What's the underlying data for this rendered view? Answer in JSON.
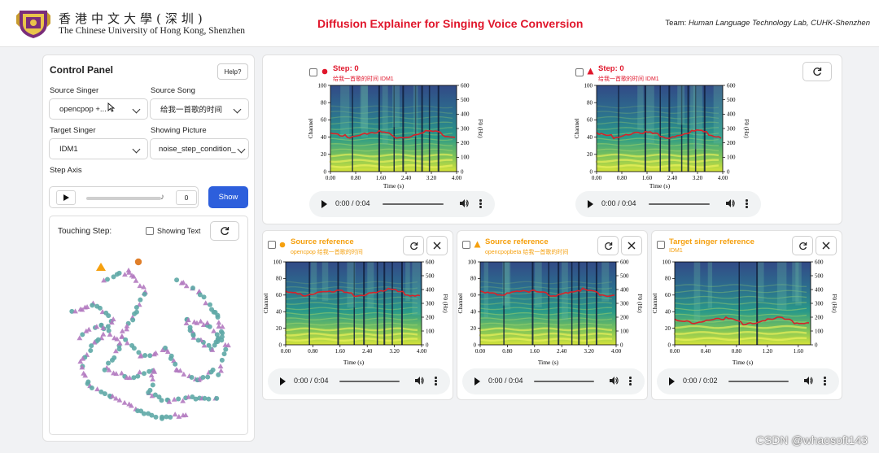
{
  "header": {
    "uni_cn": "香港中文大學(深圳)",
    "uni_en": "The Chinese University of Hong Kong, Shenzhen",
    "app_title": "Diffusion Explainer for Singing Voice Conversion",
    "team_label": "Team:",
    "team_name": "Human Language Technology Lab, CUHK-Shenzhen"
  },
  "control_panel": {
    "title": "Control Panel",
    "help_label": "Help?",
    "source_singer_label": "Source Singer",
    "source_singer_value": "opencpop +...",
    "source_song_label": "Source Song",
    "source_song_value": "给我一首歌的时间",
    "target_singer_label": "Target Singer",
    "target_singer_value": "IDM1",
    "showing_picture_label": "Showing Picture",
    "showing_picture_value": "noise_step_condition_",
    "step_axis_label": "Step Axis",
    "step_value": "0",
    "show_button": "Show",
    "touching_step_label": "Touching Step:",
    "showing_text_label": "Showing Text"
  },
  "colors": {
    "accent_red": "#e0162b",
    "accent_orange": "#f5a00f",
    "purple_points": "#b27ac0",
    "teal_points": "#5ea9a6",
    "show_button": "#2d5fdc"
  },
  "plots": {
    "step_a": {
      "title": "Step: 0",
      "subtitle": "给我一首歌的时间 IDM1",
      "marker": "circle"
    },
    "step_b": {
      "title": "Step: 0",
      "subtitle": "给我一首歌的时间 IDM1",
      "marker": "triangle"
    },
    "src_a": {
      "title": "Source reference",
      "subtitle": "opencpop 给我一首歌的时间",
      "marker": "circle"
    },
    "src_b": {
      "title": "Source reference",
      "subtitle": "opencpopbeta 给我一首歌的时间",
      "marker": "triangle"
    },
    "target": {
      "title": "Target singer reference",
      "subtitle": "IDM1"
    }
  },
  "axes": {
    "ylabel": "Channel",
    "xlabel": "Time (s)",
    "y2label": "F0 (Hz)",
    "y_ticks": [
      "100",
      "80",
      "60",
      "40",
      "20",
      "0"
    ],
    "y2_ticks": [
      "600",
      "500",
      "400",
      "300",
      "200",
      "100",
      "0"
    ],
    "x_ticks_4s": [
      "0.00",
      "0.80",
      "1.60",
      "2.40",
      "3.20",
      "4.00"
    ],
    "x_ticks_2s": [
      "0.00",
      "0.40",
      "0.80",
      "1.20",
      "1.60"
    ]
  },
  "audio": {
    "time_4s": "0:00 / 0:04",
    "time_2s": "0:00 / 0:02"
  },
  "watermark": "CSDN @whaosoft143"
}
